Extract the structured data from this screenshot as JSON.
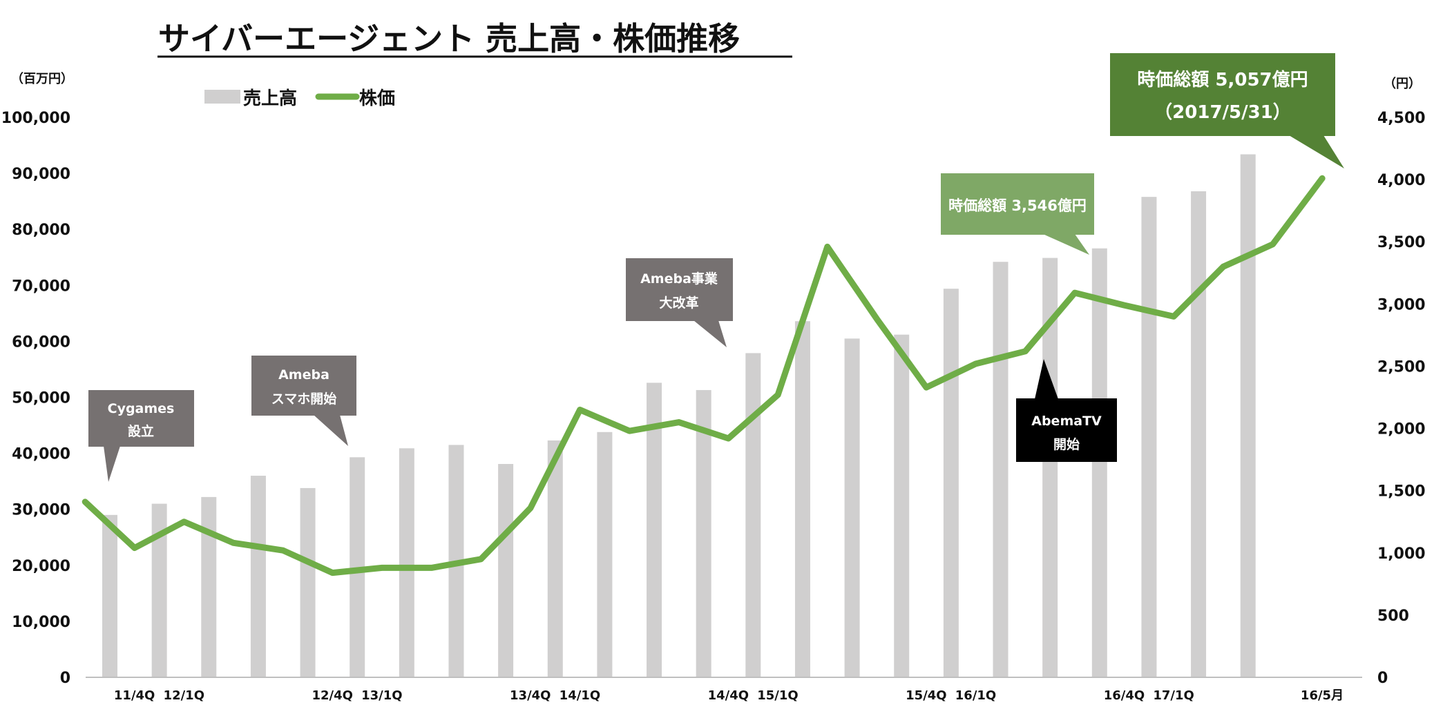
{
  "chart_data": {
    "type": "bar+line",
    "title": "サイバーエージェント 売上高・株価推移",
    "y_left_unit": "（百万円）",
    "y_right_unit": "（円）",
    "y_left_range": [
      0,
      100000
    ],
    "y_right_range": [
      0,
      4500
    ],
    "y_left_ticks": [
      "0",
      "10,000",
      "20,000",
      "30,000",
      "40,000",
      "50,000",
      "60,000",
      "70,000",
      "80,000",
      "90,000",
      "100,000"
    ],
    "y_right_ticks": [
      "0",
      "500",
      "1,000",
      "1,500",
      "2,000",
      "2,500",
      "3,000",
      "3,500",
      "4,000",
      "4,500"
    ],
    "x_tick_labels": [
      {
        "index": 1,
        "label": "11/4Q"
      },
      {
        "index": 2,
        "label": "12/1Q"
      },
      {
        "index": 5,
        "label": "12/4Q"
      },
      {
        "index": 6,
        "label": "13/1Q"
      },
      {
        "index": 9,
        "label": "13/4Q"
      },
      {
        "index": 10,
        "label": "14/1Q"
      },
      {
        "index": 13,
        "label": "14/4Q"
      },
      {
        "index": 14,
        "label": "15/1Q"
      },
      {
        "index": 17,
        "label": "15/4Q"
      },
      {
        "index": 18,
        "label": "16/1Q"
      },
      {
        "index": 21,
        "label": "16/4Q"
      },
      {
        "index": 22,
        "label": "17/1Q"
      },
      {
        "index": 25,
        "label": "16/5月"
      }
    ],
    "legend": {
      "position": "top-left",
      "bar_label": "売上高",
      "line_label": "株価"
    },
    "series": [
      {
        "name": "売上高",
        "type": "bar",
        "axis": "left",
        "color": "#d0cfcf",
        "values": [
          29000,
          31000,
          32200,
          36000,
          33800,
          39300,
          40900,
          41500,
          38100,
          42300,
          43800,
          52600,
          51300,
          57900,
          63600,
          60500,
          61200,
          69400,
          74200,
          74900,
          76600,
          85800,
          86800,
          93400
        ]
      },
      {
        "name": "株価",
        "type": "line",
        "axis": "right",
        "color": "#6fad47",
        "x": [
          0,
          1,
          2,
          3,
          4,
          5,
          6,
          7,
          8,
          9,
          10,
          11,
          12,
          13,
          14,
          15,
          16,
          17,
          18,
          19,
          20,
          21,
          22,
          23,
          24,
          25
        ],
        "values": [
          1410,
          1040,
          1250,
          1080,
          1020,
          840,
          880,
          880,
          950,
          1360,
          2150,
          1980,
          2050,
          1920,
          2270,
          3460,
          2880,
          2330,
          2520,
          2620,
          3090,
          2990,
          2900,
          3300,
          3480,
          4010
        ]
      }
    ],
    "annotations": [
      {
        "id": "cygames",
        "lines": [
          "Cygames",
          "設立"
        ],
        "color": "#767171"
      },
      {
        "id": "ameba-smartphone",
        "lines": [
          "Ameba",
          "スマホ開始"
        ],
        "color": "#767171"
      },
      {
        "id": "ameba-reform",
        "lines": [
          "Ameba事業",
          "大改革"
        ],
        "color": "#767171"
      },
      {
        "id": "abematv",
        "lines": [
          "AbemaTV",
          "開始"
        ],
        "color": "#000000"
      },
      {
        "id": "mcap-2016",
        "lines": [
          "時価総額 3,546億円"
        ],
        "color": "#7fa866"
      },
      {
        "id": "mcap-2017",
        "lines": [
          "時価総額 5,057億円",
          "（2017/5/31）"
        ],
        "color": "#548235"
      }
    ]
  }
}
